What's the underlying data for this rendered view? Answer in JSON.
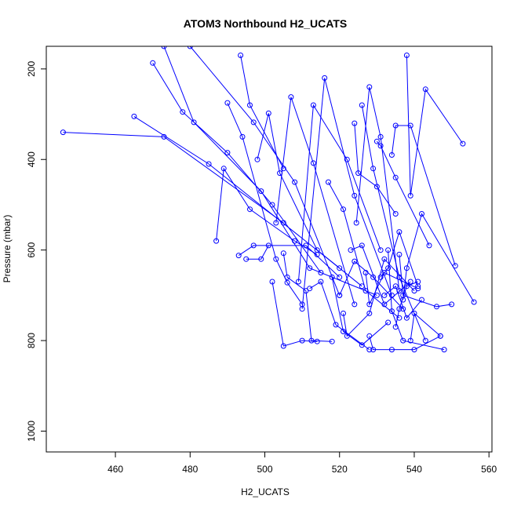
{
  "chart_data": {
    "type": "scatter",
    "title": "ATOM3 Northbound H2_UCATS",
    "xlabel": "H2_UCATS",
    "ylabel": "Pressure (mbar)",
    "xlim": [
      441.5,
      560.8
    ],
    "ylim": [
      1046,
      150
    ],
    "y_reversed": true,
    "xticks": [
      460,
      480,
      500,
      520,
      540,
      560
    ],
    "yticks": [
      200,
      400,
      600,
      800,
      1000
    ],
    "grid": false,
    "legend": "none",
    "color": "#0000FF",
    "marker": "open-circle",
    "connected": true,
    "series": [
      {
        "x": [
          446,
          473,
          505
        ],
        "y": [
          340,
          350,
          540
        ]
      },
      {
        "x": [
          465,
          485,
          520
        ],
        "y": [
          305,
          410,
          640
        ]
      },
      {
        "x": [
          470,
          478,
          490,
          502,
          515
        ],
        "y": [
          187,
          295,
          385,
          500,
          650
        ]
      },
      {
        "x": [
          473,
          481,
          499,
          512,
          530
        ],
        "y": [
          150,
          318,
          470,
          640,
          700
        ]
      },
      {
        "x": [
          487,
          489,
          496,
          508,
          514
        ],
        "y": [
          580,
          420,
          510,
          580,
          610
        ]
      },
      {
        "x": [
          490,
          494,
          503,
          506,
          510
        ],
        "y": [
          275,
          350,
          620,
          672,
          720
        ]
      },
      {
        "x": [
          493,
          497,
          511,
          520
        ],
        "y": [
          612,
          590,
          590,
          660
        ]
      },
      {
        "x": [
          493.5,
          496,
          505
        ],
        "y": [
          170,
          280,
          420
        ]
      },
      {
        "x": [
          495,
          499,
          501
        ],
        "y": [
          620,
          620,
          590
        ]
      },
      {
        "x": [
          498,
          501,
          504,
          514,
          526
        ],
        "y": [
          400,
          298,
          430,
          600,
          680
        ]
      },
      {
        "x": [
          480,
          497,
          508,
          520
        ],
        "y": [
          150,
          318,
          450,
          700
        ]
      },
      {
        "x": [
          503,
          507,
          513,
          524
        ],
        "y": [
          540,
          262,
          408,
          720
        ]
      },
      {
        "x": [
          502,
          505,
          510,
          514
        ],
        "y": [
          670,
          812,
          800,
          802
        ]
      },
      {
        "x": [
          505,
          506,
          511,
          512.5,
          518
        ],
        "y": [
          607,
          660,
          690,
          800,
          802
        ]
      },
      {
        "x": [
          509,
          513,
          522,
          531
        ],
        "y": [
          670,
          280,
          400,
          600
        ]
      },
      {
        "x": [
          510,
          516,
          524,
          534
        ],
        "y": [
          730,
          220,
          480,
          700
        ]
      },
      {
        "x": [
          512,
          515,
          519,
          528
        ],
        "y": [
          685,
          670,
          765,
          820
        ]
      },
      {
        "x": [
          517,
          521,
          527,
          536
        ],
        "y": [
          450,
          510,
          690,
          750
        ]
      },
      {
        "x": [
          518,
          521,
          526,
          533
        ],
        "y": [
          660,
          780,
          810,
          760
        ]
      },
      {
        "x": [
          520,
          524,
          529,
          537
        ],
        "y": [
          700,
          625,
          660,
          730
        ]
      },
      {
        "x": [
          521,
          522,
          528,
          532,
          540
        ],
        "y": [
          740,
          790,
          740,
          620,
          690
        ]
      },
      {
        "x": [
          523,
          526,
          532,
          539
        ],
        "y": [
          600,
          590,
          720,
          670
        ]
      },
      {
        "x": [
          524,
          525,
          530,
          535
        ],
        "y": [
          320,
          430,
          460,
          520
        ]
      },
      {
        "x": [
          524.5,
          528,
          531,
          536
        ],
        "y": [
          540,
          240,
          350,
          690
        ]
      },
      {
        "x": [
          526,
          529,
          536,
          543
        ],
        "y": [
          280,
          420,
          660,
          800
        ]
      },
      {
        "x": [
          527,
          528,
          532,
          541
        ],
        "y": [
          650,
          720,
          650,
          685
        ]
      },
      {
        "x": [
          528,
          529,
          534,
          540,
          547
        ],
        "y": [
          790,
          820,
          820,
          820,
          790
        ]
      },
      {
        "x": [
          530,
          531,
          535,
          544
        ],
        "y": [
          360,
          370,
          440,
          590
        ]
      },
      {
        "x": [
          531,
          533,
          536,
          541
        ],
        "y": [
          660,
          640,
          560,
          680
        ]
      },
      {
        "x": [
          532,
          535,
          538,
          542
        ],
        "y": [
          700,
          680,
          750,
          710
        ]
      },
      {
        "x": [
          533,
          534,
          537,
          548
        ],
        "y": [
          600,
          735,
          800,
          820
        ]
      },
      {
        "x": [
          534,
          535,
          539,
          551
        ],
        "y": [
          390,
          325,
          325,
          635
        ]
      },
      {
        "x": [
          535,
          536,
          538,
          541
        ],
        "y": [
          770,
          730,
          680,
          670
        ]
      },
      {
        "x": [
          536,
          537,
          546,
          550
        ],
        "y": [
          610,
          700,
          725,
          720
        ]
      },
      {
        "x": [
          537,
          538,
          542,
          556
        ],
        "y": [
          710,
          640,
          520,
          715
        ]
      },
      {
        "x": [
          538,
          539,
          543,
          553
        ],
        "y": [
          170,
          480,
          245,
          365
        ]
      },
      {
        "x": [
          539,
          540,
          547
        ],
        "y": [
          800,
          740,
          790
        ]
      }
    ]
  }
}
